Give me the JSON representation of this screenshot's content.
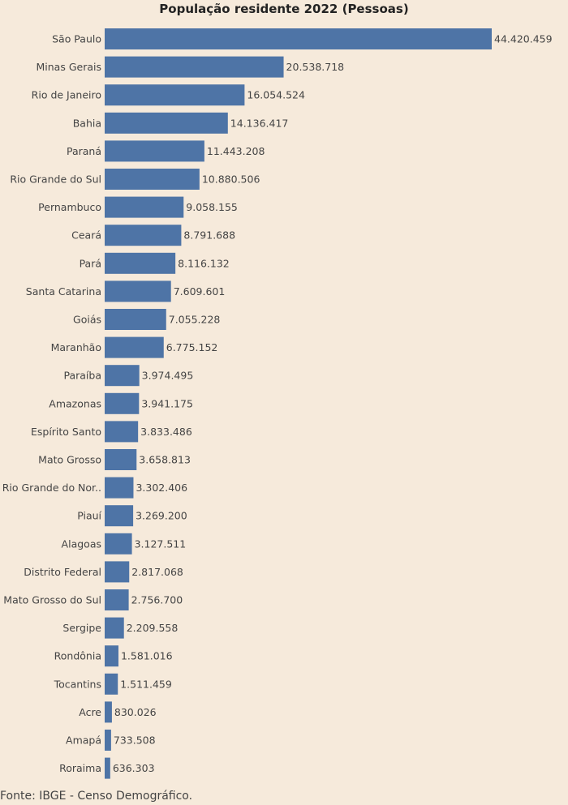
{
  "chart_data": {
    "type": "bar",
    "orientation": "horizontal",
    "title": "População residente 2022 (Pessoas)",
    "categories": [
      "São Paulo",
      "Minas Gerais",
      "Rio de Janeiro",
      "Bahia",
      "Paraná",
      "Rio Grande do Sul",
      "Pernambuco",
      "Ceará",
      "Pará",
      "Santa Catarina",
      "Goiás",
      "Maranhão",
      "Paraíba",
      "Amazonas",
      "Espírito Santo",
      "Mato Grosso",
      "Rio Grande do Nor..",
      "Piauí",
      "Alagoas",
      "Distrito Federal",
      "Mato Grosso do Sul",
      "Sergipe",
      "Rondônia",
      "Tocantins",
      "Acre",
      "Amapá",
      "Roraima"
    ],
    "values": [
      44420459,
      20538718,
      16054524,
      14136417,
      11443208,
      10880506,
      9058155,
      8791688,
      8116132,
      7609601,
      7055228,
      6775152,
      3974495,
      3941175,
      3833486,
      3658813,
      3302406,
      3269200,
      3127511,
      2817068,
      2756700,
      2209558,
      1581016,
      1511459,
      830026,
      733508,
      636303
    ],
    "value_labels": [
      "44.420.459",
      "20.538.718",
      "16.054.524",
      "14.136.417",
      "11.443.208",
      "10.880.506",
      "9.058.155",
      "8.791.688",
      "8.116.132",
      "7.609.601",
      "7.055.228",
      "6.775.152",
      "3.974.495",
      "3.941.175",
      "3.833.486",
      "3.658.813",
      "3.302.406",
      "3.269.200",
      "3.127.511",
      "2.817.068",
      "2.756.700",
      "2.209.558",
      "1.581.016",
      "1.511.459",
      "830.026",
      "733.508",
      "636.303"
    ],
    "bar_color": "#4e74a6",
    "grid": false
  },
  "source": "Fonte: IBGE - Censo Demográfico.",
  "colors": {
    "background": "#f6eadb",
    "bar": "#4e74a6"
  }
}
